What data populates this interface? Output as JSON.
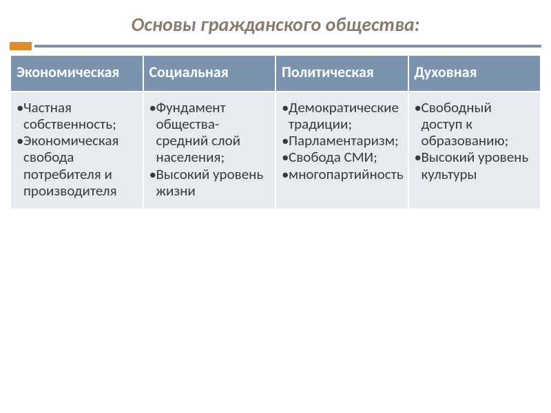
{
  "title": "Основы гражданского общества:",
  "colors": {
    "title_text": "#8b7a69",
    "accent_square": "#e08b2c",
    "accent_line": "#7a94b0",
    "header_bg": "#7a94b0",
    "header_text": "#ffffff",
    "cell_bg": "#e6ebf0",
    "cell_text": "#3a3a3a",
    "border": "#ffffff",
    "page_bg": "#ffffff"
  },
  "typography": {
    "title_fontsize": 28,
    "title_style": "bold italic",
    "header_fontsize": 22,
    "header_weight": "bold",
    "cell_fontsize": 21,
    "font_family": "Calibri"
  },
  "table": {
    "type": "table",
    "columns": [
      "Экономическая",
      "Социальная",
      "Политическая",
      "Духовная"
    ],
    "rows": [
      [
        [
          "Частная собственность;",
          "Экономическая свобода потребителя и производителя"
        ],
        [
          "Фундамент общества- средний слой населения;",
          "Высокий уровень жизни"
        ],
        [
          "Демократические традиции;",
          "Парламентаризм;",
          "Свобода СМИ;",
          "многопартийность"
        ],
        [
          "Свободный доступ к образованию;",
          "Высокий уровень культуры"
        ]
      ]
    ],
    "border_width": 2,
    "col_count": 4
  }
}
